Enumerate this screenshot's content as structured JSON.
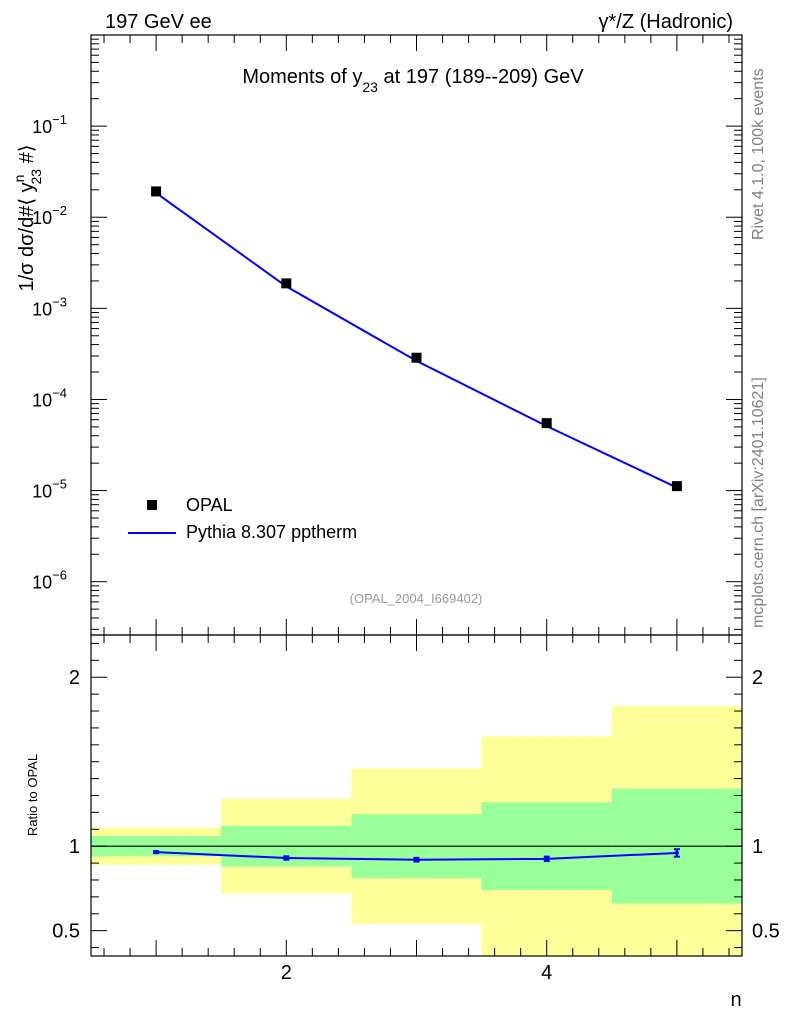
{
  "header": {
    "left": "197 GeV ee",
    "right": "γ*/Z (Hadronic)"
  },
  "side_labels": {
    "rivet": "Rivet 4.1.0,  100k events",
    "mcplots": "mcplots.cern.ch [arXiv:2401.10621]"
  },
  "chart_data": [
    {
      "type": "scatter",
      "title": "Moments of y23 at 197 (189--209) GeV",
      "title_parts": {
        "pre": "Moments of y",
        "sub": "23",
        "post": " at 197 (189--209) GeV"
      },
      "ylabel": "1/σ  dσ/d#⟨ y23n #⟩",
      "ylabel_parts": {
        "a": "1/σ  dσ/d#⟨ y",
        "sup": "n",
        "sub": "23",
        "b": " #⟩"
      },
      "xlabel": "n",
      "yscale": "log",
      "xlim": [
        0.5,
        5.5
      ],
      "ylim": [
        2.6e-07,
        1.0
      ],
      "ytick_labels": [
        {
          "base": "10",
          "exp": "−1",
          "value": 0.1
        },
        {
          "base": "10",
          "exp": "−2",
          "value": 0.01
        },
        {
          "base": "10",
          "exp": "−3",
          "value": 0.001
        },
        {
          "base": "10",
          "exp": "−4",
          "value": 0.0001
        },
        {
          "base": "10",
          "exp": "−5",
          "value": 1e-05
        },
        {
          "base": "10",
          "exp": "−6",
          "value": 1e-06
        }
      ],
      "reference": "(OPAL_2004_I669402)",
      "legend_position": "bottom-left",
      "series": [
        {
          "name": "OPAL",
          "style": "marker",
          "color": "#000000",
          "x": [
            1,
            2,
            3,
            4,
            5
          ],
          "y": [
            0.0192,
            0.00188,
            0.000287,
            5.5e-05,
            1.12e-05
          ]
        },
        {
          "name": "Pythia 8.307 pptherm",
          "style": "line",
          "color": "#0000ff",
          "x": [
            1,
            2,
            3,
            4,
            5
          ],
          "y": [
            0.0185,
            0.00174,
            0.000265,
            5.1e-05,
            1.08e-05
          ]
        }
      ]
    },
    {
      "type": "line",
      "ylabel": "Ratio to OPAL",
      "xlabel": "n",
      "xlim": [
        0.5,
        5.5
      ],
      "ylim": [
        0.35,
        2.25
      ],
      "xtick_labels": [
        "2",
        "4"
      ],
      "xtick_values": [
        2,
        4
      ],
      "ytick_labels": [
        "0.5",
        "1",
        "2"
      ],
      "ytick_values": [
        0.5,
        1,
        2
      ],
      "band_colors": {
        "inner": "#99ff99",
        "outer": "#ffff99"
      },
      "bins": [
        {
          "lo": 0.5,
          "hi": 1.5,
          "inner": [
            0.94,
            1.06
          ],
          "outer": [
            0.89,
            1.11
          ]
        },
        {
          "lo": 1.5,
          "hi": 2.5,
          "inner": [
            0.88,
            1.12
          ],
          "outer": [
            0.72,
            1.28
          ]
        },
        {
          "lo": 2.5,
          "hi": 3.5,
          "inner": [
            0.81,
            1.19
          ],
          "outer": [
            0.54,
            1.46
          ]
        },
        {
          "lo": 3.5,
          "hi": 4.5,
          "inner": [
            0.74,
            1.26
          ],
          "outer": [
            0.35,
            1.65
          ]
        },
        {
          "lo": 4.5,
          "hi": 5.5,
          "inner": [
            0.66,
            1.34
          ],
          "outer": [
            0.35,
            1.83
          ]
        }
      ],
      "ratio": {
        "name": "Pythia 8.307 pptherm",
        "color": "#0000ff",
        "x": [
          1,
          2,
          3,
          4,
          5
        ],
        "y": [
          0.965,
          0.93,
          0.92,
          0.925,
          0.96
        ],
        "err": [
          0.006,
          0.01,
          0.011,
          0.013,
          0.022
        ]
      }
    }
  ]
}
